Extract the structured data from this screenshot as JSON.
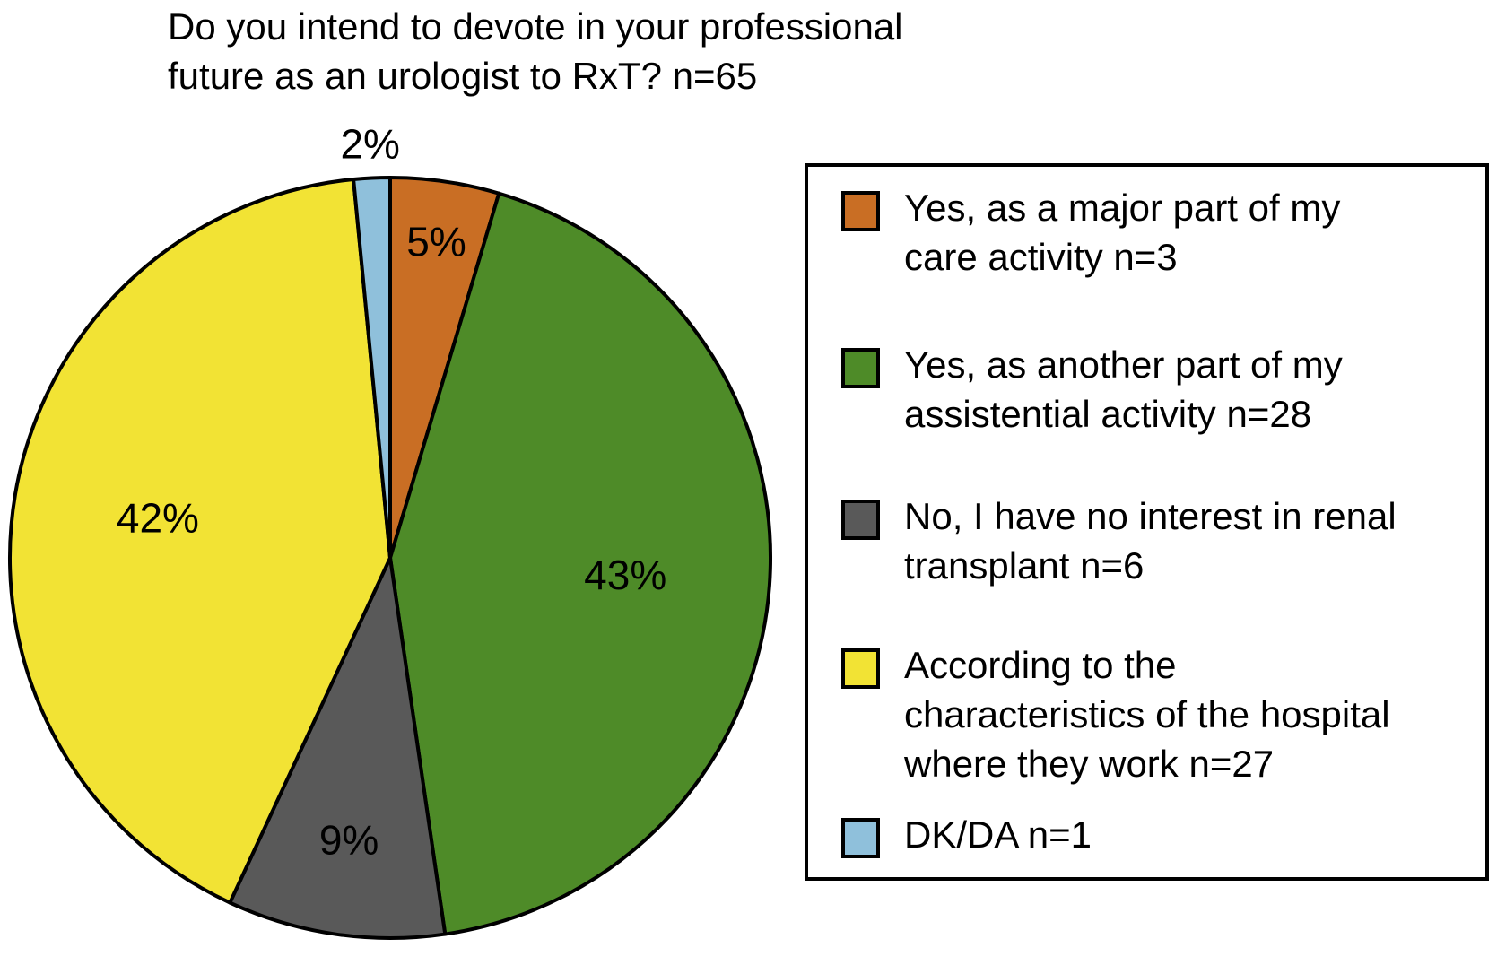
{
  "figure": {
    "title_lines": [
      "Do you intend to devote in your professional",
      "future as an urologist to RxT? n=65"
    ]
  },
  "legend": {
    "items": [
      {
        "key": "major-care",
        "color": "#C96E24",
        "lines": [
          "Yes, as a major part of my",
          "care activity n=3"
        ]
      },
      {
        "key": "another-assistential",
        "color": "#4E8B28",
        "lines": [
          "Yes, as another part of my",
          "assistential activity n=28"
        ]
      },
      {
        "key": "no-interest",
        "color": "#595959",
        "lines": [
          "No, I have no interest in renal",
          "transplant n=6"
        ]
      },
      {
        "key": "hospital",
        "color": "#F2E334",
        "lines": [
          "According to the",
          "characteristics of the hospital",
          "where they work n=27"
        ]
      },
      {
        "key": "dkda",
        "color": "#8FC0DB",
        "lines": [
          "DK/DA n=1"
        ]
      }
    ]
  },
  "chart_data": {
    "type": "pie",
    "title": "Do you intend to devote in your professional future as an urologist to RxT? n=65",
    "total_n": 65,
    "start_angle_deg": 0,
    "direction": "clockwise",
    "legend_position": "right",
    "outline_color": "#000000",
    "slices": [
      {
        "key": "major-care",
        "label": "Yes, as a major part of my care activity",
        "n": 3,
        "pct": 5,
        "pct_label": "5%",
        "color": "#C96E24"
      },
      {
        "key": "another-assistential",
        "label": "Yes, as another part of my assistential activity",
        "n": 28,
        "pct": 43,
        "pct_label": "43%",
        "color": "#4E8B28"
      },
      {
        "key": "no-interest",
        "label": "No, I have no interest in renal transplant",
        "n": 6,
        "pct": 9,
        "pct_label": "9%",
        "color": "#595959"
      },
      {
        "key": "hospital",
        "label": "According to the characteristics of the hospital where they work",
        "n": 27,
        "pct": 42,
        "pct_label": "42%",
        "color": "#F2E334"
      },
      {
        "key": "dkda",
        "label": "DK/DA",
        "n": 1,
        "pct": 2,
        "pct_label": "2%",
        "color": "#8FC0DB"
      }
    ]
  }
}
